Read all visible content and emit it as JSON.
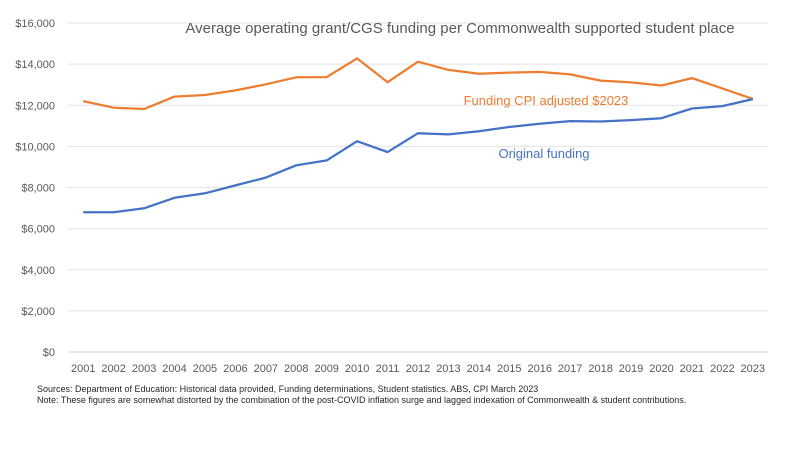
{
  "chart_data": {
    "type": "line",
    "title": "Average operating grant/CGS funding per Commonwealth supported student place",
    "xlabel": "",
    "ylabel": "",
    "ylim": [
      0,
      16000
    ],
    "yticks": [
      0,
      2000,
      4000,
      6000,
      8000,
      10000,
      12000,
      14000,
      16000
    ],
    "ytick_labels": [
      "$0",
      "$2,000",
      "$4,000",
      "$6,000",
      "$8,000",
      "$10,000",
      "$12,000",
      "$14,000",
      "$16,000"
    ],
    "grid": true,
    "categories": [
      "2001",
      "2002",
      "2003",
      "2004",
      "2005",
      "2006",
      "2007",
      "2008",
      "2009",
      "2010",
      "2011",
      "2012",
      "2013",
      "2014",
      "2015",
      "2016",
      "2017",
      "2018",
      "2019",
      "2020",
      "2021",
      "2022",
      "2023"
    ],
    "series": [
      {
        "name": "Funding CPI adjusted $2023",
        "color": "#ED7D31",
        "values": [
          12200,
          11880,
          11820,
          12420,
          12500,
          12720,
          13020,
          13360,
          13370,
          14280,
          13120,
          14120,
          13720,
          13530,
          13590,
          13620,
          13500,
          13200,
          13110,
          12960,
          13320,
          12820,
          12310
        ]
      },
      {
        "name": "Original funding",
        "color": "#4472C4",
        "values": [
          6800,
          6800,
          6990,
          7500,
          7720,
          8100,
          8480,
          9080,
          9320,
          10250,
          9720,
          10640,
          10580,
          10740,
          10940,
          11100,
          11230,
          11210,
          11280,
          11370,
          11840,
          11960,
          12300
        ]
      }
    ]
  },
  "notes": {
    "sources": "Sources: Department of Education: Historical data provided, Funding determinations, Student statistics. ABS, CPI March 2023",
    "note": "Note: These figures are somewhat distorted by the combination of the post-COVID inflation surge and lagged indexation of Commonwealth & student contributions."
  }
}
